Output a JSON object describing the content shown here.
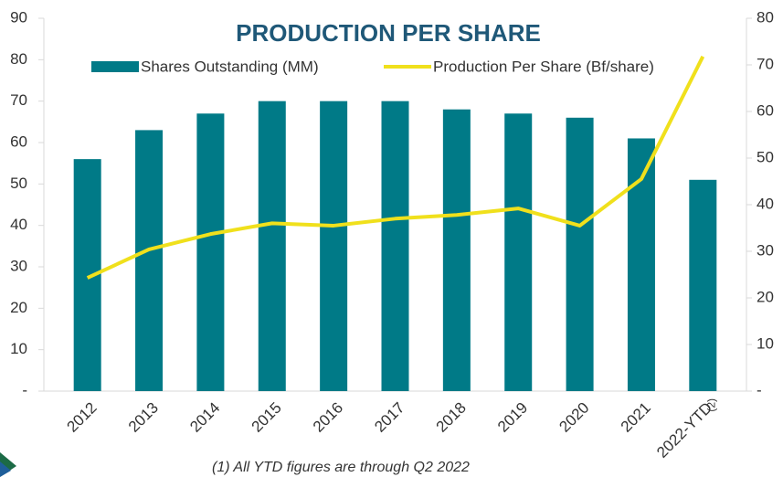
{
  "chart_data": {
    "type": "bar_line",
    "title": "PRODUCTION PER SHARE",
    "categories": [
      "2012",
      "2013",
      "2014",
      "2015",
      "2016",
      "2017",
      "2018",
      "2019",
      "2020",
      "2021",
      "2022-YTD"
    ],
    "category_note": "(2)",
    "series": [
      {
        "name": "Shares Outstanding (MM)",
        "color": "#007a87",
        "type": "bar",
        "values": [
          56,
          63,
          67,
          70,
          70,
          70,
          68,
          67,
          66,
          61,
          51
        ]
      },
      {
        "name": "Production Per Share (Bf/share)",
        "color": "#f0e01c",
        "type": "line",
        "axis": "y2",
        "values": [
          24.3,
          30.4,
          33.7,
          36,
          35.5,
          37,
          37.8,
          39.2,
          35.5,
          45.5,
          71.8
        ]
      }
    ],
    "ylim": [
      0,
      90
    ],
    "yticks": [
      {
        "value": 0,
        "label": "-"
      },
      10,
      20,
      30,
      40,
      50,
      60,
      70,
      80,
      90
    ],
    "y2lim": [
      0,
      80
    ],
    "y2ticks": [
      {
        "value": 0,
        "label": "-"
      },
      10,
      20,
      30,
      40,
      50,
      60,
      70,
      80
    ],
    "footnote": "(1)     All YTD figures are through Q2 2022"
  }
}
